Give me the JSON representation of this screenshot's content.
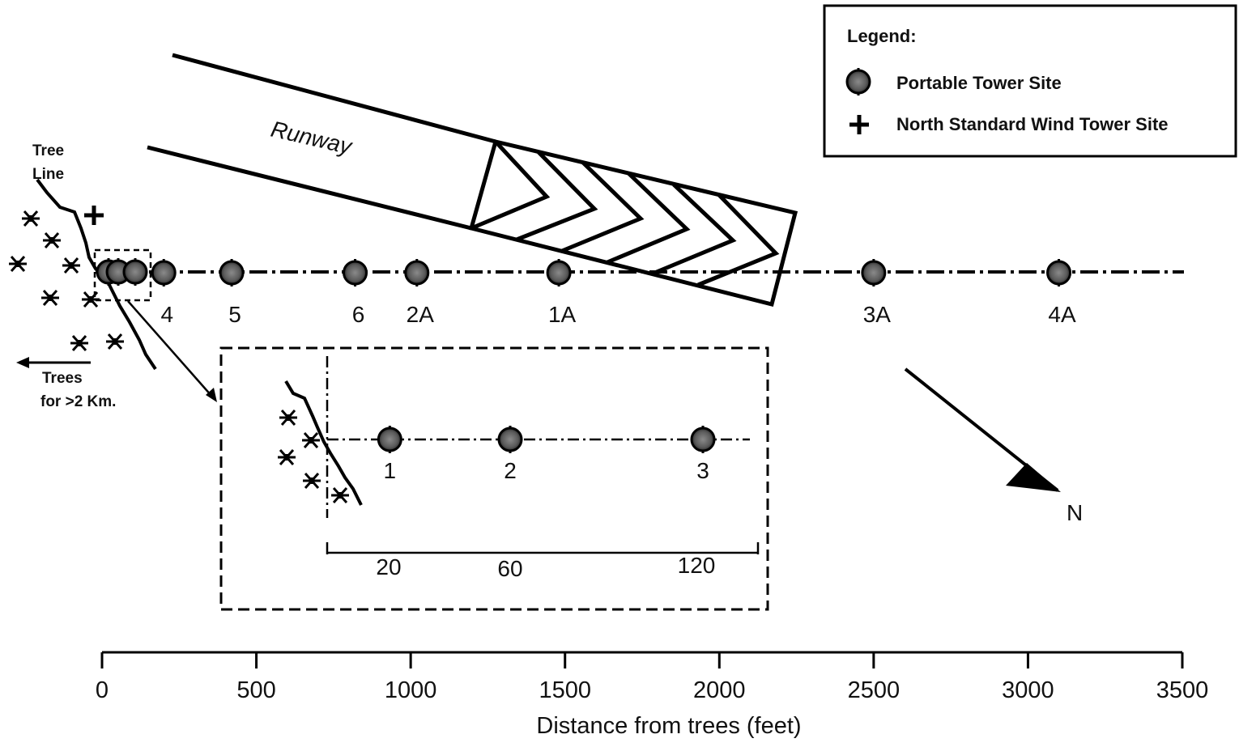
{
  "legend": {
    "title": "Legend:",
    "portable_tower": "Portable Tower Site",
    "north_tower": "North Standard Wind Tower Site"
  },
  "labels": {
    "runway": "Runway",
    "tree_line_1": "Tree",
    "tree_line_2": "Line",
    "trees_1": "Trees",
    "trees_2": "for >2 Km.",
    "north": "N"
  },
  "main_sites": [
    {
      "name": "4",
      "distance_ft": 200
    },
    {
      "name": "5",
      "distance_ft": 420
    },
    {
      "name": "6",
      "distance_ft": 820
    },
    {
      "name": "2A",
      "distance_ft": 1020
    },
    {
      "name": "1A",
      "distance_ft": 1480
    },
    {
      "name": "3A",
      "distance_ft": 2500
    },
    {
      "name": "4A",
      "distance_ft": 3100
    }
  ],
  "inset": {
    "sites": [
      {
        "name": "1",
        "distance_ft": 20
      },
      {
        "name": "2",
        "distance_ft": 60
      },
      {
        "name": "3",
        "distance_ft": 120
      }
    ],
    "tick_labels": [
      "20",
      "60",
      "120"
    ]
  },
  "axis": {
    "title": "Distance from trees (feet)",
    "ticks": [
      "0",
      "500",
      "1000",
      "1500",
      "2000",
      "2500",
      "3000",
      "3500"
    ],
    "range": [
      0,
      3500
    ]
  }
}
